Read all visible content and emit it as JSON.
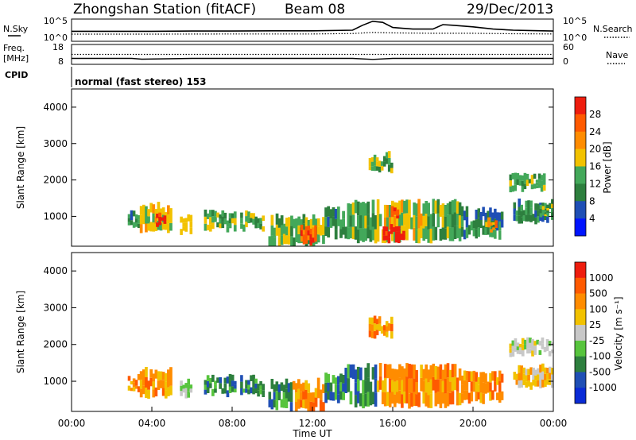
{
  "header": {
    "title": "Zhongshan Station (fitACF)",
    "beam": "Beam 08",
    "date": "29/Dec/2013"
  },
  "noise_panel": {
    "left_label": "N.Sky",
    "right_label": "N.Search",
    "left_ticks": [
      "10^5",
      "10^0"
    ],
    "right_ticks": [
      "10^5",
      "10^0"
    ]
  },
  "freq_panel": {
    "left_label_line1": "Freq.",
    "left_label_line2": "[MHz]",
    "right_label": "Nave",
    "left_ticks": [
      "18",
      "8"
    ],
    "right_ticks": [
      "60",
      "0"
    ]
  },
  "cpid_panel": {
    "label": "CPID",
    "text": "normal (fast stereo) 153"
  },
  "chart_data": [
    {
      "type": "line",
      "name": "noise",
      "series": [
        {
          "name": "N.Sky",
          "style": "solid",
          "x": [
            0,
            2,
            4,
            6,
            8,
            10,
            12,
            14,
            14.5,
            15,
            15.5,
            16,
            17,
            18,
            18.5,
            19,
            20,
            21,
            22,
            23,
            24
          ],
          "y": [
            0.45,
            0.45,
            0.45,
            0.46,
            0.46,
            0.47,
            0.47,
            0.5,
            0.72,
            0.9,
            0.85,
            0.62,
            0.55,
            0.55,
            0.75,
            0.72,
            0.65,
            0.55,
            0.5,
            0.48,
            0.46
          ]
        },
        {
          "name": "N.Search",
          "style": "dotted",
          "x": [
            0,
            4,
            8,
            12,
            14,
            15,
            16,
            18,
            20,
            22,
            24
          ],
          "y": [
            0.32,
            0.32,
            0.33,
            0.33,
            0.35,
            0.4,
            0.38,
            0.36,
            0.36,
            0.34,
            0.33
          ]
        }
      ]
    },
    {
      "type": "line",
      "name": "frequency",
      "ylim": [
        8,
        18
      ],
      "series": [
        {
          "name": "Freq.",
          "style": "solid",
          "x": [
            0,
            3,
            3.5,
            6,
            9,
            12,
            14,
            15,
            16,
            18,
            20,
            24
          ],
          "y": [
            11,
            11,
            10.6,
            11,
            11,
            11,
            11,
            10.5,
            11,
            11,
            11,
            11
          ]
        },
        {
          "name": "Nave",
          "style": "dotted",
          "x": [
            0,
            24
          ],
          "y": [
            13,
            13
          ]
        }
      ]
    },
    {
      "type": "heatmap",
      "name": "power",
      "xlabel": "",
      "ylabel": "Slant Range [km]",
      "colorbar_label": "Power [dB]",
      "xlim": [
        0,
        24
      ],
      "ylim": [
        180,
        4500
      ],
      "yticks": [
        "1000",
        "2000",
        "3000",
        "4000"
      ],
      "colorbar_ticks": [
        "4",
        "8",
        "12",
        "16",
        "20",
        "24",
        "28"
      ],
      "colors": [
        "#0014ff",
        "#1f4fb5",
        "#2d7f3e",
        "#43a85a",
        "#f2c200",
        "#ff8c00",
        "#ff5a00",
        "#ee1d0e"
      ],
      "regions": [
        {
          "t0": 2.8,
          "t1": 3.4,
          "r0": 700,
          "r1": 1100,
          "level": 2
        },
        {
          "t0": 3.4,
          "t1": 5.0,
          "r0": 550,
          "r1": 1300,
          "level": 4
        },
        {
          "t0": 4.2,
          "t1": 4.7,
          "r0": 700,
          "r1": 1100,
          "level": 7
        },
        {
          "t0": 5.4,
          "t1": 6.0,
          "r0": 500,
          "r1": 1000,
          "level": 4
        },
        {
          "t0": 6.6,
          "t1": 8.2,
          "r0": 600,
          "r1": 1100,
          "level": 3
        },
        {
          "t0": 8.4,
          "t1": 9.6,
          "r0": 600,
          "r1": 1100,
          "level": 3
        },
        {
          "t0": 9.8,
          "t1": 12.6,
          "r0": 200,
          "r1": 1000,
          "level": 3
        },
        {
          "t0": 11.4,
          "t1": 12.2,
          "r0": 250,
          "r1": 700,
          "level": 6
        },
        {
          "t0": 12.6,
          "t1": 13.6,
          "r0": 400,
          "r1": 1200,
          "level": 2
        },
        {
          "t0": 13.6,
          "t1": 15.2,
          "r0": 300,
          "r1": 1400,
          "level": 3
        },
        {
          "t0": 15.2,
          "t1": 17.6,
          "r0": 300,
          "r1": 1400,
          "level": 4
        },
        {
          "t0": 15.5,
          "t1": 16.6,
          "r0": 300,
          "r1": 700,
          "level": 7
        },
        {
          "t0": 15.9,
          "t1": 16.3,
          "r0": 900,
          "r1": 1250,
          "level": 6
        },
        {
          "t0": 17.6,
          "t1": 19.4,
          "r0": 300,
          "r1": 1400,
          "level": 3
        },
        {
          "t0": 19.4,
          "t1": 21.5,
          "r0": 400,
          "r1": 1200,
          "level": 2
        },
        {
          "t0": 20.6,
          "t1": 21.2,
          "r0": 600,
          "r1": 900,
          "level": 5
        },
        {
          "t0": 21.8,
          "t1": 23.6,
          "r0": 1700,
          "r1": 2100,
          "level": 3
        },
        {
          "t0": 22.0,
          "t1": 24.0,
          "r0": 800,
          "r1": 1400,
          "level": 2
        },
        {
          "t0": 23.2,
          "t1": 24.0,
          "r0": 1000,
          "r1": 1250,
          "level": 3
        },
        {
          "t0": 14.8,
          "t1": 16.0,
          "r0": 2200,
          "r1": 2700,
          "level": 3
        }
      ]
    },
    {
      "type": "heatmap",
      "name": "velocity",
      "xlabel": "Time UT",
      "ylabel": "Slant Range [km]",
      "colorbar_label": "Velocity [m s⁻¹]",
      "xlim": [
        0,
        24
      ],
      "ylim": [
        180,
        4500
      ],
      "xticks": [
        "00:00",
        "04:00",
        "08:00",
        "12:00",
        "16:00",
        "20:00",
        "00:00"
      ],
      "yticks": [
        "1000",
        "2000",
        "3000",
        "4000"
      ],
      "colorbar_ticks": [
        "1000",
        "500",
        "100",
        "25",
        "-25",
        "-100",
        "-500",
        "-1000"
      ],
      "colors": [
        "#0a2bd6",
        "#1f4fb5",
        "#2d7f3e",
        "#57c43d",
        "#c8c8c8",
        "#f2c200",
        "#ff8c00",
        "#ff5a00",
        "#ee1d0e"
      ],
      "regions": [
        {
          "t0": 2.8,
          "t1": 3.4,
          "r0": 700,
          "r1": 1100,
          "level": 6
        },
        {
          "t0": 3.4,
          "t1": 5.0,
          "r0": 550,
          "r1": 1300,
          "level": 6
        },
        {
          "t0": 5.4,
          "t1": 6.0,
          "r0": 500,
          "r1": 1000,
          "level": 3
        },
        {
          "t0": 6.6,
          "t1": 8.2,
          "r0": 600,
          "r1": 1100,
          "level": 2
        },
        {
          "t0": 8.4,
          "t1": 9.6,
          "r0": 600,
          "r1": 1100,
          "level": 2
        },
        {
          "t0": 9.8,
          "t1": 11.0,
          "r0": 200,
          "r1": 1000,
          "level": 2
        },
        {
          "t0": 11.0,
          "t1": 12.6,
          "r0": 200,
          "r1": 1000,
          "level": 6
        },
        {
          "t0": 12.6,
          "t1": 13.6,
          "r0": 400,
          "r1": 1200,
          "level": 2
        },
        {
          "t0": 13.6,
          "t1": 15.2,
          "r0": 300,
          "r1": 1400,
          "level": 2
        },
        {
          "t0": 15.2,
          "t1": 17.6,
          "r0": 300,
          "r1": 1400,
          "level": 6
        },
        {
          "t0": 17.6,
          "t1": 19.4,
          "r0": 300,
          "r1": 1400,
          "level": 6
        },
        {
          "t0": 19.4,
          "t1": 21.5,
          "r0": 400,
          "r1": 1200,
          "level": 6
        },
        {
          "t0": 21.8,
          "t1": 24.0,
          "r0": 1700,
          "r1": 2100,
          "level": 4
        },
        {
          "t0": 22.0,
          "t1": 24.0,
          "r0": 800,
          "r1": 1400,
          "level": 5
        },
        {
          "t0": 14.8,
          "t1": 16.0,
          "r0": 2200,
          "r1": 2700,
          "level": 6
        }
      ]
    }
  ]
}
